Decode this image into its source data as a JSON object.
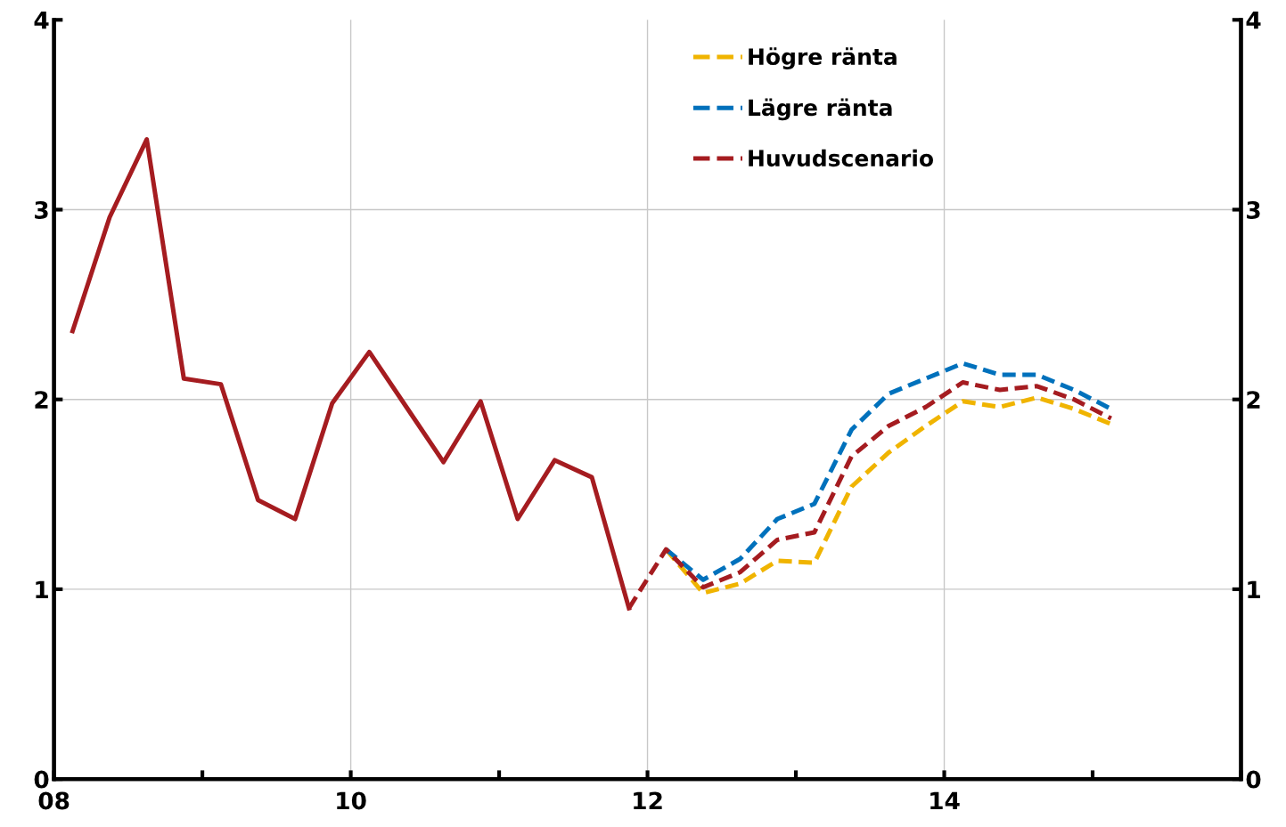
{
  "chart_data": {
    "type": "line",
    "xlim": [
      2008,
      2016
    ],
    "xticks": [
      {
        "value": 2008,
        "label": "08"
      },
      {
        "value": 2009,
        "label": null
      },
      {
        "value": 2010,
        "label": "10"
      },
      {
        "value": 2011,
        "label": null
      },
      {
        "value": 2012,
        "label": "12"
      },
      {
        "value": 2013,
        "label": null
      },
      {
        "value": 2014,
        "label": "14"
      },
      {
        "value": 2015,
        "label": null
      },
      {
        "value": 2016,
        "label": null
      }
    ],
    "ylim": [
      0,
      4
    ],
    "yticks": [
      0,
      1,
      2,
      3,
      4
    ],
    "y2lim": [
      0,
      4
    ],
    "y2ticks": [
      0,
      1,
      2,
      3,
      4
    ],
    "grid": true,
    "legend": "top",
    "marker": "none",
    "series": [
      {
        "color": "#a51c20",
        "line_style": "solid",
        "x": [
          2008.125,
          2008.375,
          2008.625,
          2008.875,
          2009.125,
          2009.375,
          2009.625,
          2009.875,
          2010.125,
          2010.375,
          2010.625,
          2010.875,
          2011.125,
          2011.375,
          2011.625,
          2011.875
        ],
        "values": [
          2.36,
          2.96,
          3.37,
          2.11,
          2.08,
          1.47,
          1.37,
          1.98,
          2.25,
          1.96,
          1.67,
          1.99,
          1.37,
          1.68,
          1.59,
          0.9
        ]
      },
      {
        "name": "Högre ränta",
        "color": "#f0b400",
        "line_style": "dashed",
        "x": [
          2012.125,
          2012.375,
          2012.625,
          2012.875,
          2013.125,
          2013.375,
          2013.625,
          2013.875,
          2014.125,
          2014.375,
          2014.625,
          2014.875,
          2015.125
        ],
        "values": [
          1.21,
          0.98,
          1.03,
          1.15,
          1.14,
          1.54,
          1.72,
          1.86,
          1.99,
          1.96,
          2.01,
          1.95,
          1.87
        ]
      },
      {
        "name": "Lägre ränta",
        "color": "#0071bc",
        "line_style": "dashed",
        "x": [
          2012.125,
          2012.375,
          2012.625,
          2012.875,
          2013.125,
          2013.375,
          2013.625,
          2013.875,
          2014.125,
          2014.375,
          2014.625,
          2014.875,
          2015.125
        ],
        "values": [
          1.21,
          1.05,
          1.16,
          1.37,
          1.45,
          1.84,
          2.03,
          2.11,
          2.19,
          2.13,
          2.13,
          2.05,
          1.95
        ]
      },
      {
        "name": "Huvudscenario",
        "color": "#a51c20",
        "line_style": "dashed",
        "x": [
          2011.875,
          2012.125,
          2012.375,
          2012.625,
          2012.875,
          2013.125,
          2013.375,
          2013.625,
          2013.875,
          2014.125,
          2014.375,
          2014.625,
          2014.875,
          2015.125
        ],
        "values": [
          0.9,
          1.21,
          1.01,
          1.09,
          1.26,
          1.3,
          1.7,
          1.86,
          1.96,
          2.09,
          2.05,
          2.07,
          2.0,
          1.9
        ]
      }
    ]
  }
}
